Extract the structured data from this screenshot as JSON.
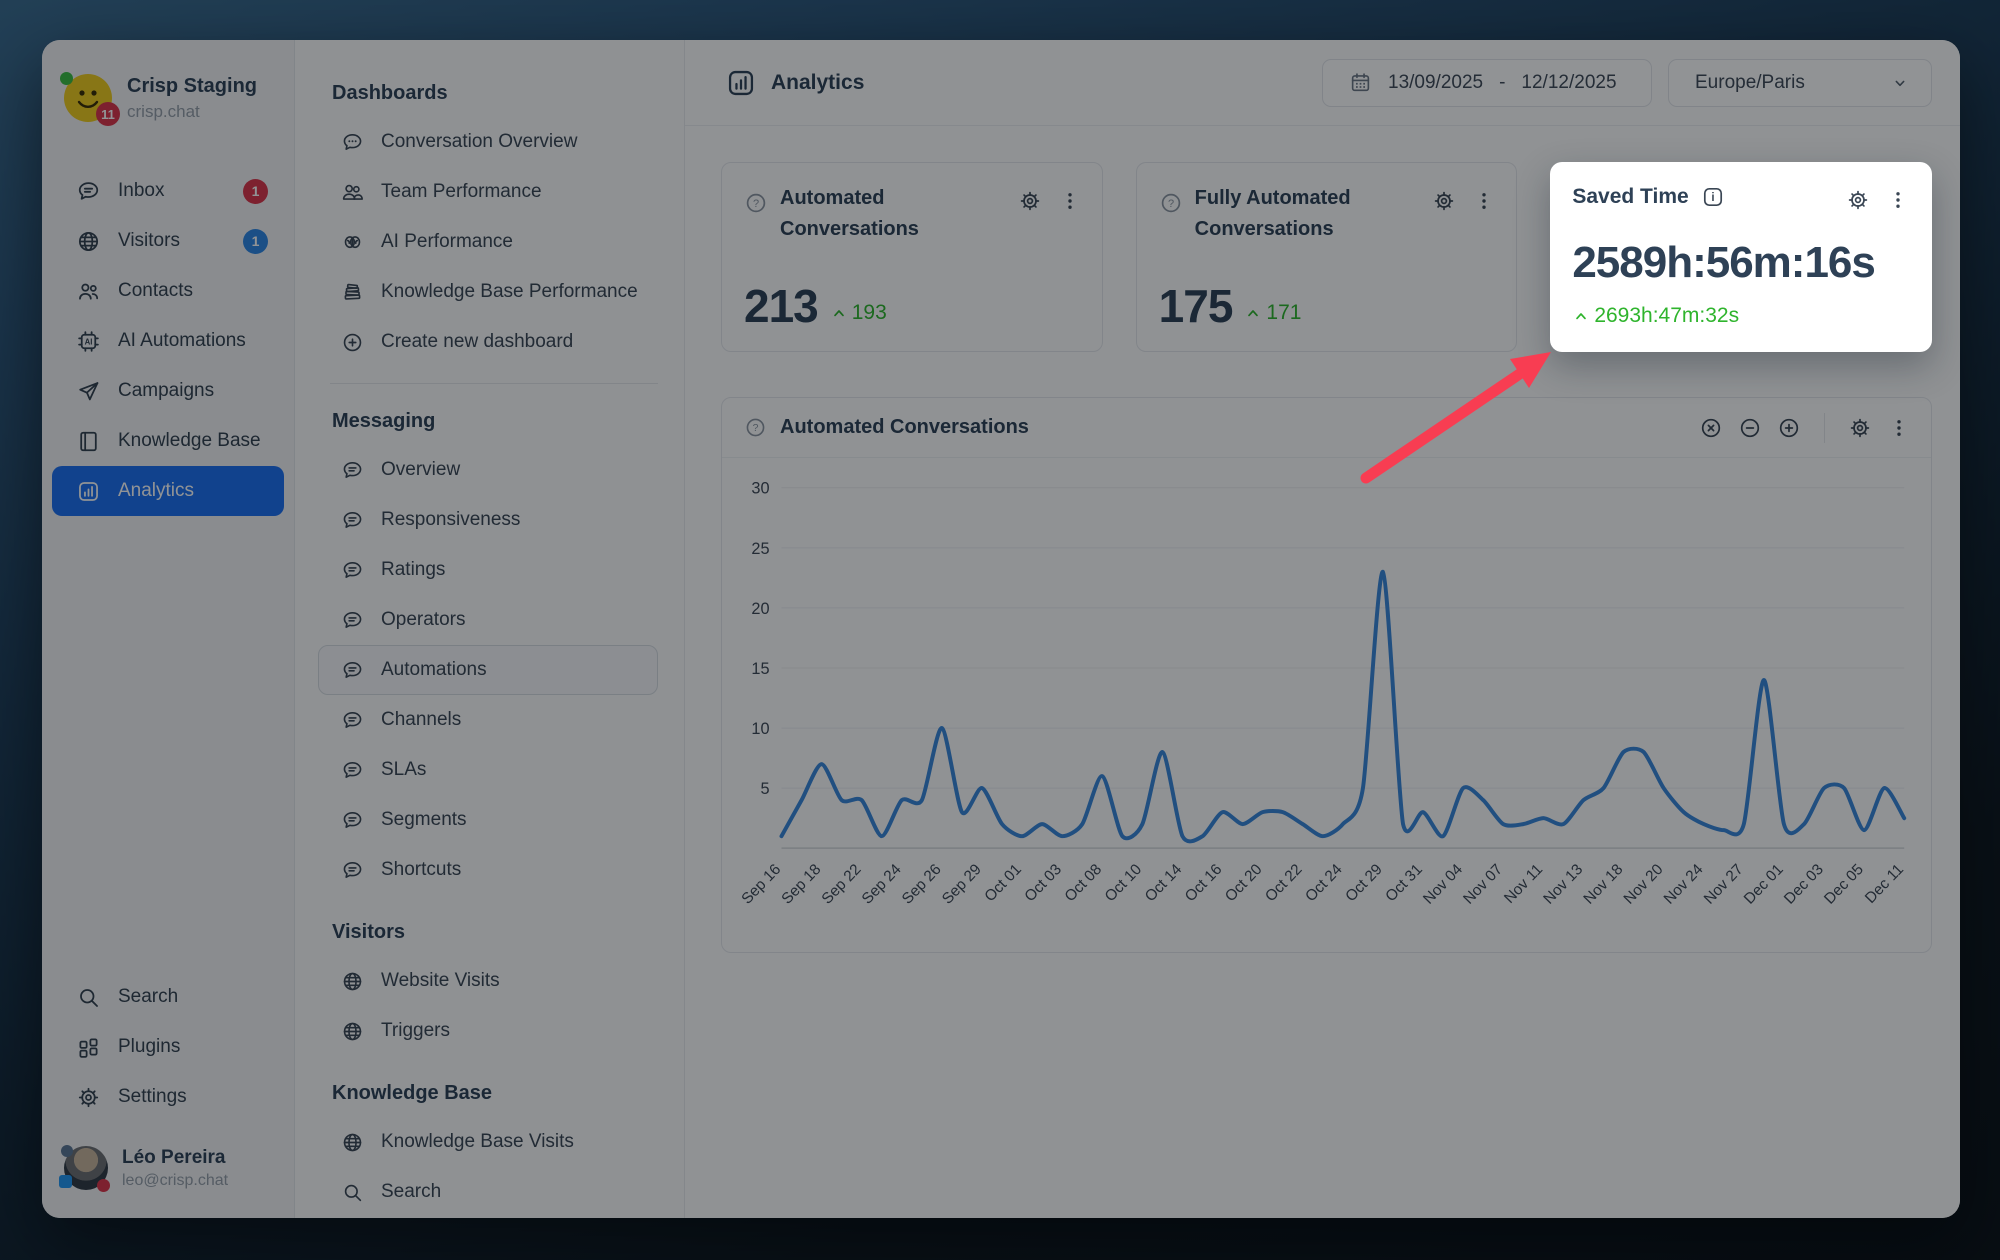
{
  "workspace": {
    "name": "Crisp Staging",
    "domain": "crisp.chat",
    "unread_badge": "11"
  },
  "nav": {
    "items": [
      {
        "label": "Inbox",
        "icon": "chat-lines-icon",
        "badge": "1",
        "badge_color": "#DC3449"
      },
      {
        "label": "Visitors",
        "icon": "globe-icon",
        "badge": "1",
        "badge_color": "#2E87E5"
      },
      {
        "label": "Contacts",
        "icon": "contacts-icon"
      },
      {
        "label": "AI Automations",
        "icon": "ai-chip-icon"
      },
      {
        "label": "Campaigns",
        "icon": "paper-plane-icon"
      },
      {
        "label": "Knowledge Base",
        "icon": "book-icon"
      },
      {
        "label": "Analytics",
        "icon": "analytics-icon",
        "active": true
      }
    ],
    "footer_items": [
      {
        "label": "Search",
        "icon": "search-icon"
      },
      {
        "label": "Plugins",
        "icon": "plugins-icon"
      },
      {
        "label": "Settings",
        "icon": "gear-icon"
      }
    ]
  },
  "user": {
    "name": "Léo Pereira",
    "email": "leo@crisp.chat"
  },
  "panel": {
    "sections": [
      {
        "title": "Dashboards",
        "divider_after": true,
        "items": [
          {
            "label": "Conversation Overview",
            "icon": "speech-balloon-icon"
          },
          {
            "label": "Team Performance",
            "icon": "team-icon"
          },
          {
            "label": "AI Performance",
            "icon": "brain-icon"
          },
          {
            "label": "Knowledge Base Performance",
            "icon": "books-icon"
          },
          {
            "label": "Create new dashboard",
            "icon": "circle-plus-icon"
          }
        ]
      },
      {
        "title": "Messaging",
        "items": [
          {
            "label": "Overview",
            "icon": "chat-lines-icon"
          },
          {
            "label": "Responsiveness",
            "icon": "chat-lines-icon"
          },
          {
            "label": "Ratings",
            "icon": "chat-lines-icon"
          },
          {
            "label": "Operators",
            "icon": "chat-lines-icon"
          },
          {
            "label": "Automations",
            "icon": "chat-lines-icon",
            "selected": true
          },
          {
            "label": "Channels",
            "icon": "chat-lines-icon"
          },
          {
            "label": "SLAs",
            "icon": "chat-lines-icon"
          },
          {
            "label": "Segments",
            "icon": "chat-lines-icon"
          },
          {
            "label": "Shortcuts",
            "icon": "chat-lines-icon"
          }
        ]
      },
      {
        "title": "Visitors",
        "items": [
          {
            "label": "Website Visits",
            "icon": "globe-icon"
          },
          {
            "label": "Triggers",
            "icon": "globe-icon"
          }
        ]
      },
      {
        "title": "Knowledge Base",
        "items": [
          {
            "label": "Knowledge Base Visits",
            "icon": "globe-icon"
          },
          {
            "label": "Search",
            "icon": "search-icon"
          }
        ]
      }
    ]
  },
  "header": {
    "title": "Analytics",
    "icon": "analytics-icon",
    "date_range": {
      "icon": "calendar-icon",
      "start": "13/09/2025",
      "separator": "-",
      "end": "12/12/2025"
    },
    "timezone": {
      "value": "Europe/Paris",
      "icon": "chevron-down-icon"
    }
  },
  "stat_cards": [
    {
      "title": "Automated Conversations",
      "help_icon": "help-circle-icon",
      "value": "213",
      "delta": "193"
    },
    {
      "title": "Fully Automated Conversations",
      "help_icon": "help-circle-icon",
      "value": "175",
      "delta": "171"
    },
    {
      "title": "Saved Time",
      "help_icon": "info-square-icon",
      "value": "2589h:56m:16s",
      "delta": "2693h:47m:32s",
      "highlighted": true
    }
  ],
  "card_actions": [
    "gear-icon",
    "kebab-icon"
  ],
  "chart_card": {
    "title": "Automated Conversations",
    "help_icon": "help-circle-icon",
    "controls": [
      "circle-x-icon",
      "circle-minus-icon",
      "circle-plus-icon",
      "divider",
      "gear-icon",
      "kebab-icon"
    ]
  },
  "chart_data": {
    "type": "line",
    "title": "Automated Conversations",
    "x_labels": [
      "Sep 16",
      "Sep 18",
      "Sep 22",
      "Sep 24",
      "Sep 26",
      "Sep 29",
      "Oct 01",
      "Oct 03",
      "Oct 08",
      "Oct 10",
      "Oct 14",
      "Oct 16",
      "Oct 20",
      "Oct 22",
      "Oct 24",
      "Oct 29",
      "Oct 31",
      "Nov 04",
      "Nov 07",
      "Nov 11",
      "Nov 13",
      "Nov 18",
      "Nov 20",
      "Nov 24",
      "Nov 27",
      "Dec 01",
      "Dec 03",
      "Dec 05",
      "Dec 11"
    ],
    "label_every": 2,
    "values": [
      1,
      4,
      7,
      4,
      4,
      1,
      4,
      4,
      10,
      3,
      5,
      2,
      1,
      2,
      1,
      2,
      6,
      1,
      2,
      8,
      1,
      1,
      3,
      2,
      3,
      3,
      2,
      1,
      2,
      5,
      23,
      2,
      3,
      1,
      5,
      4,
      2,
      2,
      2.5,
      2,
      4,
      5,
      8,
      8,
      5,
      3,
      2,
      1.5,
      2,
      14,
      2,
      2,
      5,
      5,
      1.5,
      5,
      2.5
    ],
    "ylim": [
      0,
      30
    ],
    "yticks": [
      5,
      10,
      15,
      20,
      25,
      30
    ],
    "grid": true,
    "legend": "none",
    "line_color": "#3886DA"
  },
  "colors": {
    "accent_blue": "#1C6FF1",
    "green": "#2FB42D",
    "badge_red": "#DC3449",
    "badge_blue": "#2E87E5",
    "arrow_red": "#F83D52",
    "chart_line": "#3886DA"
  }
}
